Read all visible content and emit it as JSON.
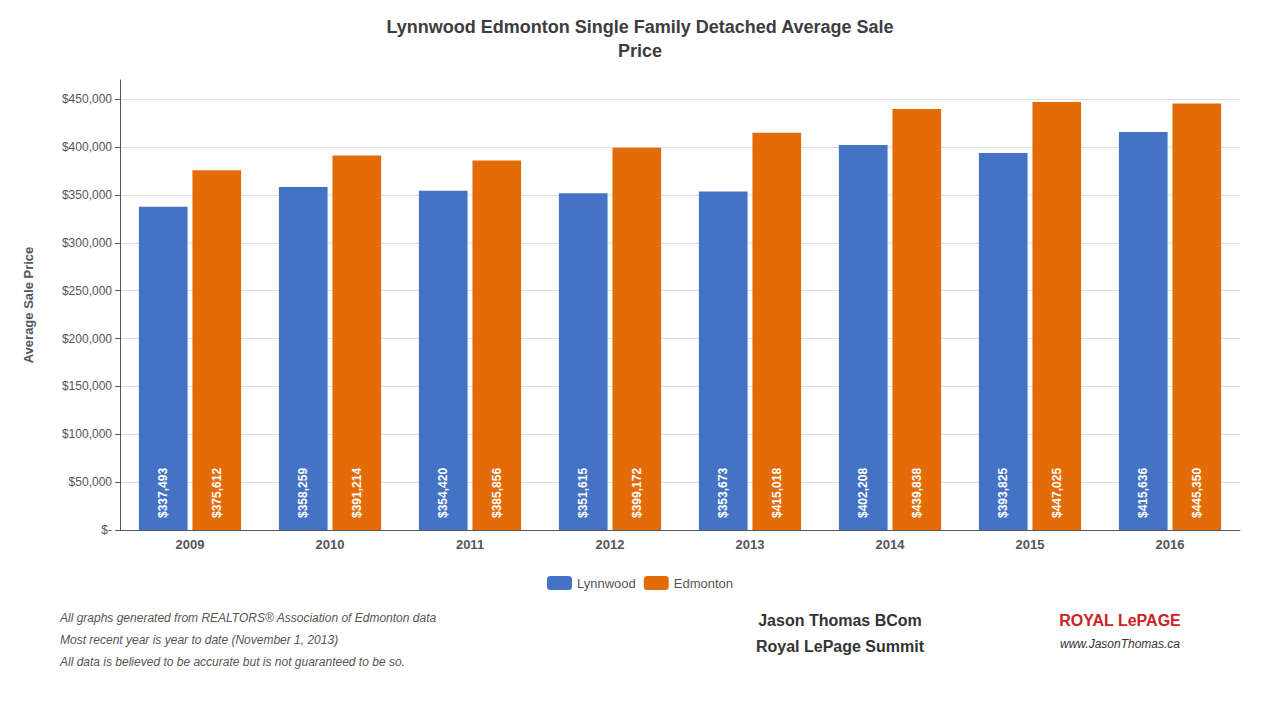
{
  "chart_data": {
    "type": "bar",
    "title": "Lynnwood Edmonton Single Family Detached Average Sale\nPrice",
    "ylabel": "Average Sale Price",
    "categories": [
      "2009",
      "2010",
      "2011",
      "2012",
      "2013",
      "2014",
      "2015",
      "2016"
    ],
    "series": [
      {
        "name": "Lynnwood",
        "color": "#4472C4",
        "values": [
          337493,
          358259,
          354420,
          351615,
          353673,
          402208,
          393825,
          415636
        ],
        "value_labels": [
          "$337,493",
          "$358,259",
          "$354,420",
          "$351,615",
          "$353,673",
          "$402,208",
          "$393,825",
          "$415,636"
        ]
      },
      {
        "name": "Edmonton",
        "color": "#E36C09",
        "values": [
          375612,
          391214,
          385856,
          399172,
          415018,
          439838,
          447025,
          445350
        ],
        "value_labels": [
          "$375,612",
          "$391,214",
          "$385,856",
          "$399,172",
          "$415,018",
          "$439,838",
          "$447,025",
          "$445,350"
        ]
      }
    ],
    "ylim": [
      0,
      470000
    ],
    "yticks": [
      {
        "value": 0,
        "label": "$-"
      },
      {
        "value": 50000,
        "label": "$50,000"
      },
      {
        "value": 100000,
        "label": "$100,000"
      },
      {
        "value": 150000,
        "label": "$150,000"
      },
      {
        "value": 200000,
        "label": "$200,000"
      },
      {
        "value": 250000,
        "label": "$250,000"
      },
      {
        "value": 300000,
        "label": "$300,000"
      },
      {
        "value": 350000,
        "label": "$350,000"
      },
      {
        "value": 400000,
        "label": "$400,000"
      },
      {
        "value": 450000,
        "label": "$450,000"
      }
    ],
    "grid": true,
    "legend": "bottom",
    "data_labels": true,
    "annotations": [
      "All graphs generated from REALTORS® Association of Edmonton data",
      "Most recent year is year to date (November 1, 2013)",
      "All data is believed to be accurate but is not guaranteed to be so.",
      "Jason Thomas BCom",
      "Royal LePage Summit",
      "ROYAL LePAGE",
      "www.JasonThomas.ca"
    ]
  }
}
